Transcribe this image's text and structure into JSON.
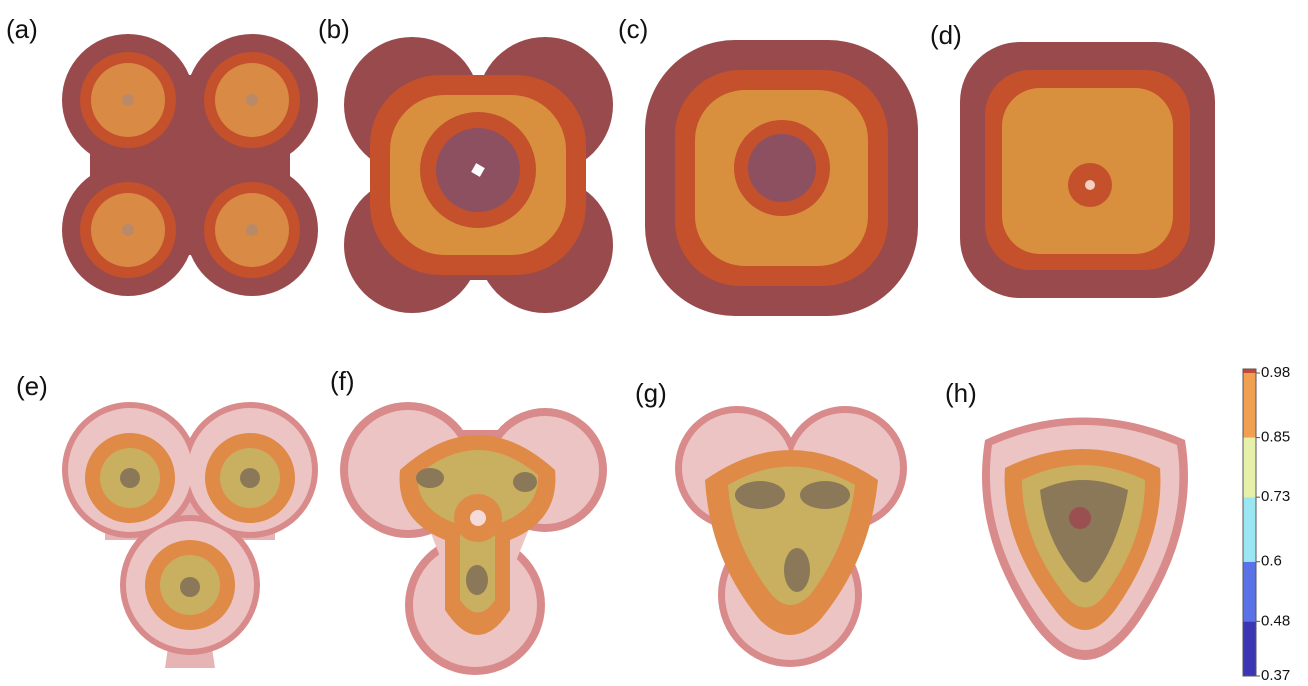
{
  "panels": [
    {
      "label": "(a)"
    },
    {
      "label": "(b)"
    },
    {
      "label": "(c)"
    },
    {
      "label": "(d)"
    },
    {
      "label": "(e)"
    },
    {
      "label": "(f)"
    },
    {
      "label": "(g)"
    },
    {
      "label": "(h)"
    }
  ],
  "colorbar": {
    "ticks": [
      0.98,
      0.85,
      0.73,
      0.6,
      0.48,
      0.37
    ]
  }
}
